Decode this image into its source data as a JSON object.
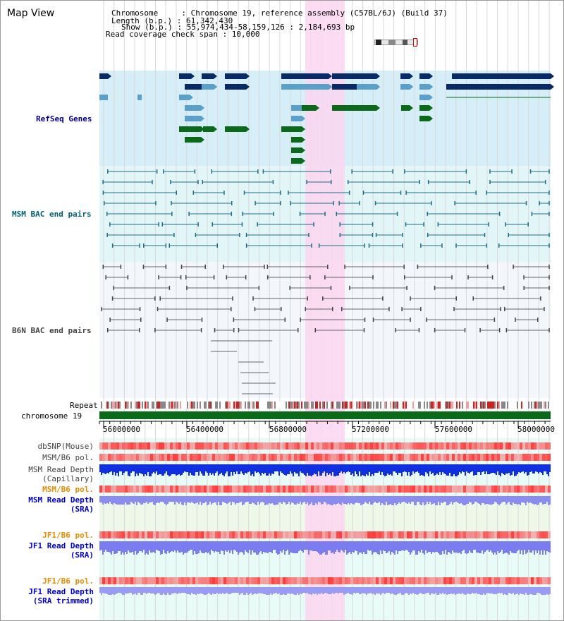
{
  "title": "Map View",
  "header": {
    "chromosome_line": "Chromosome     : Chromosome 19, reference assembly (C57BL/6J) (Build 37)",
    "length_line": "Length (b.p.) : 61,342,430",
    "show_line": "Show (b.p.) : 55,974,434-58,159,126 : 2,184,693 bp",
    "coverage_line": "Read coverage check span : 10,000"
  },
  "tracks": {
    "refseq": "RefSeq Genes",
    "msm_bac": "MSM BAC end pairs",
    "b6n_bac": "B6N BAC end pairs",
    "repeat": "Repeat",
    "chromosome": "chromosome 19",
    "dbsnp": "dbSNP(Mouse)",
    "msm_b6_pol_1": "MSM/B6 pol.",
    "msm_depth_cap_1": "MSM Read Depth",
    "msm_depth_cap_2": "(Capillary)",
    "msm_b6_pol_2": "MSM/B6 pol.",
    "msm_depth_sra_1": "MSM Read Depth",
    "msm_depth_sra_2": "(SRA)",
    "jf1_b6_pol_1": "JF1/B6 pol.",
    "jf1_depth_sra_1": "JF1 Read Depth",
    "jf1_depth_sra_2": "(SRA)",
    "jf1_b6_pol_2": "JF1/B6 pol.",
    "jf1_depth_trim_1": "JF1 Read Depth",
    "jf1_depth_trim_2": "(SRA trimmed)"
  },
  "axis_ticks": [
    "56000000",
    "56400000",
    "56800000",
    "57200000",
    "57600000",
    "58000000"
  ],
  "colors": {
    "label_navy": "#000080",
    "label_teal": "#006070",
    "label_orange": "#e09000",
    "label_blue": "#0000c0",
    "highlight": "#fbd6f0",
    "refseq_bg": "#d6eef8",
    "msm_bg": "#e2f6f8",
    "b6n_bg": "#f3f6fb",
    "gene_navy": "#0a2a66",
    "gene_light": "#5aa0c8",
    "gene_green": "#0a6a1a",
    "chrom_green": "#0a6a1a"
  }
}
